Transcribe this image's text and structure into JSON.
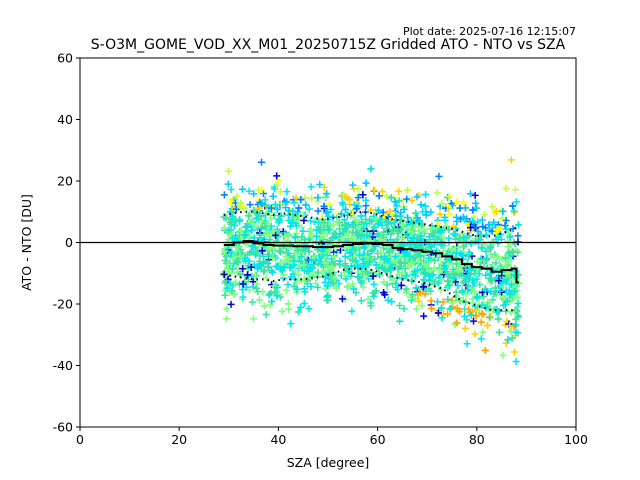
{
  "chart_data": {
    "type": "scatter",
    "plot_date": "Plot date: 2025-07-16 12:15:07",
    "title": "S-O3M_GOME_VOD_XX_M01_20250715Z Gridded ATO - NTO vs SZA",
    "xlabel": "SZA [degree]",
    "ylabel": "ATO - NTO [DU]",
    "xlim": [
      0,
      100
    ],
    "ylim": [
      -60,
      60
    ],
    "xticks": [
      "0",
      "20",
      "40",
      "60",
      "80",
      "100"
    ],
    "yticks": [
      "60",
      "40",
      "20",
      "0",
      "-20",
      "-40",
      "-60"
    ],
    "grid": false,
    "reference_line_y": 0,
    "scatter_sza_range": [
      29,
      88.5
    ],
    "scatter_marker": "+",
    "scatter_colors": [
      "#0000cd",
      "#0080ff",
      "#00c8ff",
      "#00e5ee",
      "#40e0a0",
      "#80ff80",
      "#c0ff40",
      "#ffff00",
      "#ffd000",
      "#ffa500"
    ],
    "mean_line": {
      "x": [
        29,
        31,
        33,
        35,
        37,
        39,
        41,
        43,
        45,
        47,
        49,
        51,
        53,
        55,
        57,
        59,
        61,
        63,
        65,
        67,
        69,
        71,
        73,
        75,
        77,
        79,
        81,
        83,
        85,
        87,
        88
      ],
      "y": [
        -0.8,
        0,
        0.5,
        -0.3,
        -0.8,
        -1,
        -1,
        -1.2,
        -1.2,
        -1.5,
        -1.5,
        -1.2,
        -0.8,
        -0.5,
        -0.3,
        -0.5,
        -0.8,
        -1.8,
        -2.2,
        -2.5,
        -3,
        -3.5,
        -4.5,
        -5.5,
        -7,
        -8,
        -8.5,
        -9.5,
        -9,
        -8.5,
        -13
      ]
    },
    "upper_band": {
      "x": [
        29,
        31,
        33,
        35,
        37,
        39,
        41,
        43,
        45,
        47,
        49,
        51,
        53,
        55,
        57,
        59,
        61,
        63,
        65,
        67,
        69,
        71,
        73,
        75,
        77,
        79,
        81,
        83,
        85,
        87,
        88
      ],
      "y": [
        9,
        9.5,
        10,
        10,
        9.5,
        9,
        9.5,
        9,
        8.5,
        8,
        7.5,
        8,
        8.5,
        9.5,
        10,
        9.5,
        8.5,
        7.5,
        7,
        6.5,
        6,
        5.5,
        5,
        4.5,
        3.5,
        2.5,
        2,
        2,
        3,
        4,
        5
      ]
    },
    "lower_band": {
      "x": [
        29,
        31,
        33,
        35,
        37,
        39,
        41,
        43,
        45,
        47,
        49,
        51,
        53,
        55,
        57,
        59,
        61,
        63,
        65,
        67,
        69,
        71,
        73,
        75,
        77,
        79,
        81,
        83,
        85,
        87,
        88
      ],
      "y": [
        -10.5,
        -11,
        -11.5,
        -12,
        -12,
        -12.5,
        -12,
        -12,
        -12,
        -11.5,
        -11,
        -10,
        -9,
        -8.5,
        -8.5,
        -9,
        -10,
        -11,
        -12,
        -12.5,
        -13,
        -14,
        -15,
        -17,
        -19,
        -20,
        -21,
        -22,
        -22,
        -22,
        -23
      ]
    }
  }
}
